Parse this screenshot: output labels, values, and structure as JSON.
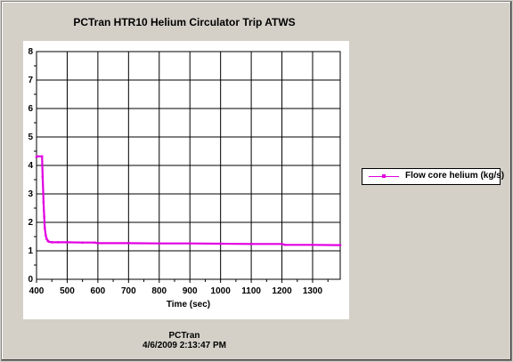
{
  "chart_data": {
    "type": "line",
    "title": "PCTran HTR10 Helium Circulator Trip ATWS",
    "xlabel": "Time (sec)",
    "ylabel": "",
    "xlim": [
      400,
      1390
    ],
    "ylim": [
      0,
      8
    ],
    "xticks": [
      400,
      500,
      600,
      700,
      800,
      900,
      1000,
      1100,
      1200,
      1300
    ],
    "yticks": [
      0,
      1,
      2,
      3,
      4,
      5,
      6,
      7,
      8
    ],
    "grid": true,
    "legend_position": "right",
    "series": [
      {
        "name": "Flow core helium (kg/s)",
        "color": "#e100e1",
        "x": [
          400,
          402,
          418,
          420,
          423,
          425,
          427,
          430,
          433,
          437,
          440,
          450,
          470,
          500,
          550,
          590,
          600,
          700,
          800,
          900,
          1000,
          1100,
          1200,
          1210,
          1300,
          1390
        ],
        "y": [
          4.3,
          4.32,
          4.32,
          3.6,
          2.7,
          2.2,
          1.8,
          1.55,
          1.42,
          1.35,
          1.32,
          1.3,
          1.3,
          1.3,
          1.29,
          1.29,
          1.27,
          1.27,
          1.26,
          1.26,
          1.25,
          1.24,
          1.24,
          1.21,
          1.21,
          1.2
        ]
      }
    ]
  },
  "footer": {
    "line1": "PCTran",
    "line2": "4/6/2009 2:13:47 PM"
  }
}
